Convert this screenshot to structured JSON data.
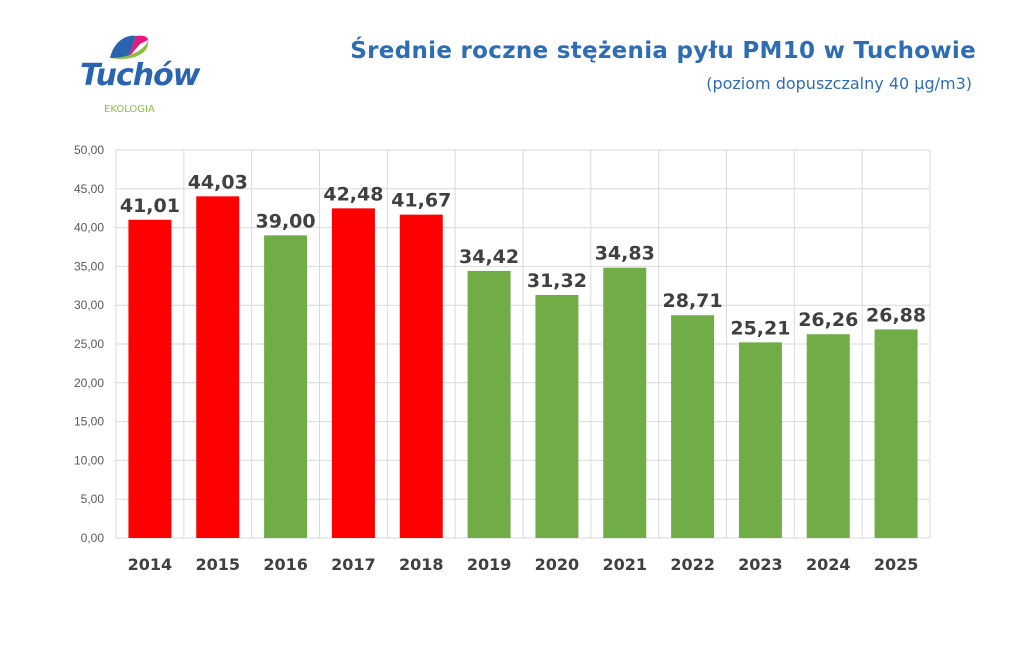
{
  "logo": {
    "name": "Tuchów",
    "tagline": "EKOLOGIA"
  },
  "chart_data": {
    "type": "bar",
    "title": "Średnie roczne stężenia pyłu PM10 w Tuchowie",
    "subtitle": "(poziom dopuszczalny 40 µg/m3)",
    "categories": [
      "2014",
      "2015",
      "2016",
      "2017",
      "2018",
      "2019",
      "2020",
      "2021",
      "2022",
      "2023",
      "2024",
      "2025"
    ],
    "values": [
      41.01,
      44.03,
      39.0,
      42.48,
      41.67,
      34.42,
      31.32,
      34.83,
      28.71,
      25.21,
      26.26,
      26.88
    ],
    "labels": [
      "41,01",
      "44,03",
      "39,00",
      "42,48",
      "41,67",
      "34,42",
      "31,32",
      "34,83",
      "28,71",
      "25,21",
      "26,26",
      "26,88"
    ],
    "bar_colors": [
      "#ff0000",
      "#ff0000",
      "#70ad47",
      "#ff0000",
      "#ff0000",
      "#70ad47",
      "#70ad47",
      "#70ad47",
      "#70ad47",
      "#70ad47",
      "#70ad47",
      "#70ad47"
    ],
    "yticks": [
      "0,00",
      "5,00",
      "10,00",
      "15,00",
      "20,00",
      "25,00",
      "30,00",
      "35,00",
      "40,00",
      "45,00",
      "50,00"
    ],
    "ylim": [
      0,
      50
    ],
    "grid": true,
    "xlabel": "",
    "ylabel": ""
  }
}
